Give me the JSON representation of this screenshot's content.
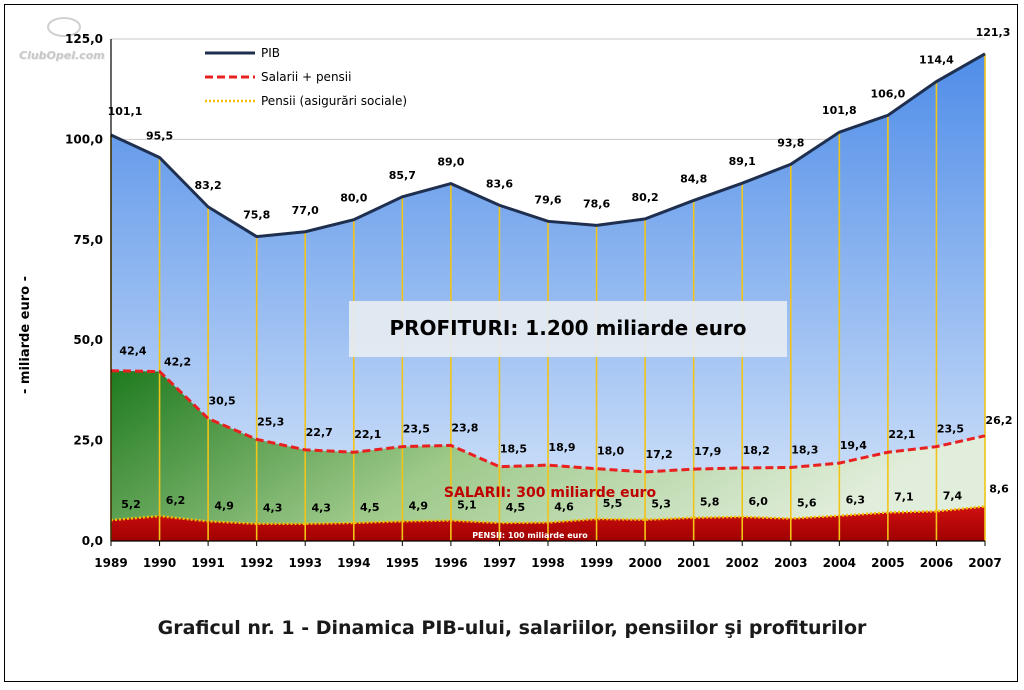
{
  "chart_data": {
    "type": "area",
    "title": "Graficul nr. 1 - Dinamica PIB-ului, salariilor, pensiilor şi profiturilor",
    "ylabel": "- miliarde euro -",
    "xlabel": "",
    "ylim": [
      0,
      125
    ],
    "yticks": [
      "0,0",
      "25,0",
      "50,0",
      "75,0",
      "100,0",
      "125,0"
    ],
    "categories": [
      "1989",
      "1990",
      "1991",
      "1992",
      "1993",
      "1994",
      "1995",
      "1996",
      "1997",
      "1998",
      "1999",
      "2000",
      "2001",
      "2002",
      "2003",
      "2004",
      "2005",
      "2006",
      "2007"
    ],
    "series": [
      {
        "name": "PIB",
        "values": [
          101.1,
          95.5,
          83.2,
          75.8,
          77.0,
          80.0,
          85.7,
          89.0,
          83.6,
          79.6,
          78.6,
          80.2,
          84.8,
          89.1,
          93.8,
          101.8,
          106.0,
          114.4,
          121.3
        ],
        "labels": [
          "101,1",
          "95,5",
          "83,2",
          "75,8",
          "77,0",
          "80,0",
          "85,7",
          "89,0",
          "83,6",
          "79,6",
          "78,6",
          "80,2",
          "84,8",
          "89,1",
          "93,8",
          "101,8",
          "106,0",
          "114,4",
          "121,3"
        ]
      },
      {
        "name": "Salarii + pensii",
        "values": [
          42.4,
          42.2,
          30.5,
          25.3,
          22.7,
          22.1,
          23.5,
          23.8,
          18.5,
          18.9,
          18.0,
          17.2,
          17.9,
          18.2,
          18.3,
          19.4,
          22.1,
          23.5,
          26.2
        ],
        "labels": [
          "42,4",
          "42,2",
          "30,5",
          "25,3",
          "22,7",
          "22,1",
          "23,5",
          "23,8",
          "18,5",
          "18,9",
          "18,0",
          "17,2",
          "17,9",
          "18,2",
          "18,3",
          "19,4",
          "22,1",
          "23,5",
          "26,2"
        ]
      },
      {
        "name": "Pensii (asigurări sociale)",
        "values": [
          5.2,
          6.2,
          4.9,
          4.3,
          4.3,
          4.5,
          4.9,
          5.1,
          4.5,
          4.6,
          5.5,
          5.3,
          5.8,
          6.0,
          5.6,
          6.3,
          7.1,
          7.4,
          8.6
        ],
        "labels": [
          "5,2",
          "6,2",
          "4,9",
          "4,3",
          "4,3",
          "4,5",
          "4,9",
          "5,1",
          "4,5",
          "4,6",
          "5,5",
          "5,3",
          "5,8",
          "6,0",
          "5,6",
          "6,3",
          "7,1",
          "7,4",
          "8,6"
        ]
      }
    ],
    "annotations": {
      "profit": "PROFITURI: 1.200 miliarde euro",
      "salarii": "SALARII: 300 miliarde euro",
      "pensii": "PENSII: 100 miliarde euro"
    },
    "legend_position": "top-left",
    "grid": true,
    "colors": {
      "pib": "#1f2f4f",
      "salarii": "#e02020",
      "pensii": "#f0c020",
      "pib_fill": "#5b8fe0",
      "salarii_fill": "#2e8b2e",
      "pensii_fill": "#c00000"
    }
  },
  "watermark": "ClubOpel.com"
}
